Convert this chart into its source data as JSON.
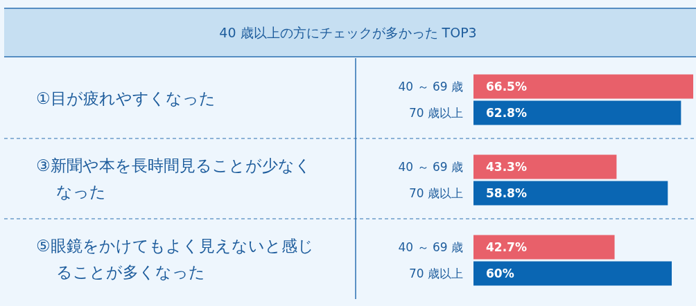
{
  "chart_data": {
    "type": "bar",
    "orientation": "horizontal",
    "title": "40 歳以上の方にチェックが多かった TOP3",
    "categories": [
      "①目が疲れやすくなった",
      "③新聞や本を長時間見ることが少なくなった",
      "⑤眼鏡をかけてもよく見えないと感じることが多くなった"
    ],
    "series": [
      {
        "name": "40 ～ 69 歳",
        "color": "#e8606a",
        "values": [
          66.5,
          43.3,
          42.7
        ],
        "value_labels": [
          "66.5%",
          "43.3%",
          "42.7%"
        ]
      },
      {
        "name": "70 歳以上",
        "color": "#0a66b3",
        "values": [
          62.8,
          58.8,
          60
        ],
        "value_labels": [
          "62.8%",
          "58.8%",
          "60%"
        ]
      }
    ],
    "tick_labels": "y"
  }
}
